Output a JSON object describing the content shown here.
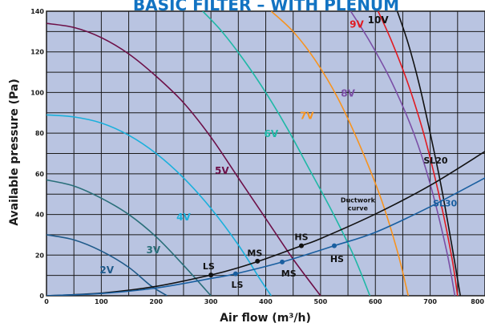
{
  "chart_data": {
    "type": "line",
    "title": "BASIC FILTER – WITH PLENUM",
    "xlabel": "Air flow (m³/h)",
    "ylabel": "Available pressure (Pa)",
    "xlim": [
      0,
      800
    ],
    "ylim": [
      0,
      140
    ],
    "xticks": [
      0,
      100,
      200,
      300,
      400,
      500,
      600,
      700,
      800
    ],
    "yticks": [
      0,
      20,
      40,
      60,
      80,
      100,
      120,
      140
    ],
    "x_grid_step": 50,
    "y_grid_step": 10,
    "grid": true,
    "background": "#b9c4e1",
    "series": [
      {
        "name": "2V",
        "color": "#1f5a8a",
        "label_pos": [
          110,
          11
        ],
        "points": [
          [
            0,
            30
          ],
          [
            50,
            27.5
          ],
          [
            100,
            22
          ],
          [
            150,
            14
          ],
          [
            190,
            5
          ],
          [
            220,
            0
          ]
        ]
      },
      {
        "name": "3V",
        "color": "#2a6f7a",
        "label_pos": [
          195,
          21
        ],
        "points": [
          [
            0,
            57
          ],
          [
            50,
            54
          ],
          [
            100,
            48
          ],
          [
            150,
            40
          ],
          [
            200,
            29
          ],
          [
            250,
            15
          ],
          [
            300,
            0
          ]
        ]
      },
      {
        "name": "4V",
        "color": "#1ab0dc",
        "label_pos": [
          250,
          37
        ],
        "points": [
          [
            0,
            89
          ],
          [
            50,
            88
          ],
          [
            100,
            85
          ],
          [
            150,
            79
          ],
          [
            200,
            70
          ],
          [
            250,
            58
          ],
          [
            300,
            43
          ],
          [
            350,
            25
          ],
          [
            390,
            8
          ],
          [
            410,
            0
          ]
        ]
      },
      {
        "name": "5V",
        "color": "#6d1048",
        "label_pos": [
          320,
          60
        ],
        "points": [
          [
            0,
            134
          ],
          [
            50,
            132
          ],
          [
            100,
            127
          ],
          [
            150,
            119
          ],
          [
            200,
            108
          ],
          [
            250,
            95
          ],
          [
            300,
            78
          ],
          [
            350,
            58
          ],
          [
            400,
            38
          ],
          [
            450,
            18
          ],
          [
            500,
            0
          ]
        ]
      },
      {
        "name": "6V",
        "color": "#1fb8a6",
        "label_pos": [
          410,
          78
        ],
        "points": [
          [
            285,
            140
          ],
          [
            320,
            130
          ],
          [
            360,
            116
          ],
          [
            400,
            100
          ],
          [
            440,
            82
          ],
          [
            480,
            62
          ],
          [
            520,
            42
          ],
          [
            560,
            20
          ],
          [
            590,
            0
          ]
        ]
      },
      {
        "name": "7V",
        "color": "#f7931e",
        "label_pos": [
          475,
          87
        ],
        "points": [
          [
            410,
            140
          ],
          [
            450,
            130
          ],
          [
            490,
            116
          ],
          [
            530,
            98
          ],
          [
            570,
            75
          ],
          [
            610,
            48
          ],
          [
            640,
            22
          ],
          [
            660,
            0
          ]
        ]
      },
      {
        "name": "8V",
        "color": "#7b4fa6",
        "label_pos": [
          550,
          98
        ],
        "points": [
          [
            555,
            140
          ],
          [
            590,
            125
          ],
          [
            630,
            105
          ],
          [
            670,
            80
          ],
          [
            700,
            55
          ],
          [
            730,
            22
          ],
          [
            745,
            0
          ]
        ]
      },
      {
        "name": "9V",
        "color": "#e01b22",
        "label_pos": [
          566,
          132
        ],
        "points": [
          [
            605,
            140
          ],
          [
            630,
            125
          ],
          [
            660,
            104
          ],
          [
            690,
            78
          ],
          [
            720,
            45
          ],
          [
            740,
            18
          ],
          [
            750,
            0
          ]
        ]
      },
      {
        "name": "10V",
        "color": "#111111",
        "label_pos": [
          605,
          134
        ],
        "points": [
          [
            640,
            140
          ],
          [
            660,
            124
          ],
          [
            680,
            104
          ],
          [
            700,
            80
          ],
          [
            720,
            54
          ],
          [
            740,
            24
          ],
          [
            755,
            0
          ]
        ]
      }
    ],
    "ductwork": [
      {
        "name": "SL20",
        "color": "#111111",
        "label_pos": [
          710,
          65
        ],
        "points": [
          [
            0,
            0
          ],
          [
            100,
            1.3
          ],
          [
            200,
            4.6
          ],
          [
            300,
            10.2
          ],
          [
            350,
            13.8
          ],
          [
            400,
            18.2
          ],
          [
            465,
            24.6
          ],
          [
            500,
            28.1
          ],
          [
            600,
            40.2
          ],
          [
            700,
            54.3
          ],
          [
            800,
            71
          ]
        ]
      },
      {
        "name": "SL30",
        "color": "#1a5fa0",
        "label_pos": [
          727,
          44
        ],
        "points": [
          [
            0,
            0
          ],
          [
            100,
            1.1
          ],
          [
            200,
            3.8
          ],
          [
            300,
            8.5
          ],
          [
            345,
            10.8
          ],
          [
            430,
            16.6
          ],
          [
            525,
            24.6
          ],
          [
            600,
            31.2
          ],
          [
            700,
            43.8
          ],
          [
            800,
            58
          ]
        ]
      }
    ],
    "operating_points": [
      {
        "label": "LS",
        "x": 300,
        "y": 10.2,
        "curve": "SL20",
        "label_pos": [
          296,
          13
        ]
      },
      {
        "label": "MS",
        "x": 385,
        "y": 17,
        "curve": "SL20",
        "label_pos": [
          380,
          19.5
        ]
      },
      {
        "label": "HS",
        "x": 465,
        "y": 24.6,
        "curve": "SL20",
        "label_pos": [
          465,
          27.5
        ]
      },
      {
        "label": "LS",
        "x": 345,
        "y": 10.8,
        "curve": "SL30",
        "label_pos": [
          348,
          4
        ]
      },
      {
        "label": "MS",
        "x": 430,
        "y": 16.6,
        "curve": "SL30",
        "label_pos": [
          442,
          9.5
        ]
      },
      {
        "label": "HS",
        "x": 525,
        "y": 24.6,
        "curve": "SL30",
        "label_pos": [
          530,
          16.5
        ]
      }
    ],
    "annotations": [
      {
        "text": "Ductwork",
        "pos": [
          568,
          46
        ]
      },
      {
        "text": "curve",
        "pos": [
          568,
          42
        ]
      }
    ]
  }
}
